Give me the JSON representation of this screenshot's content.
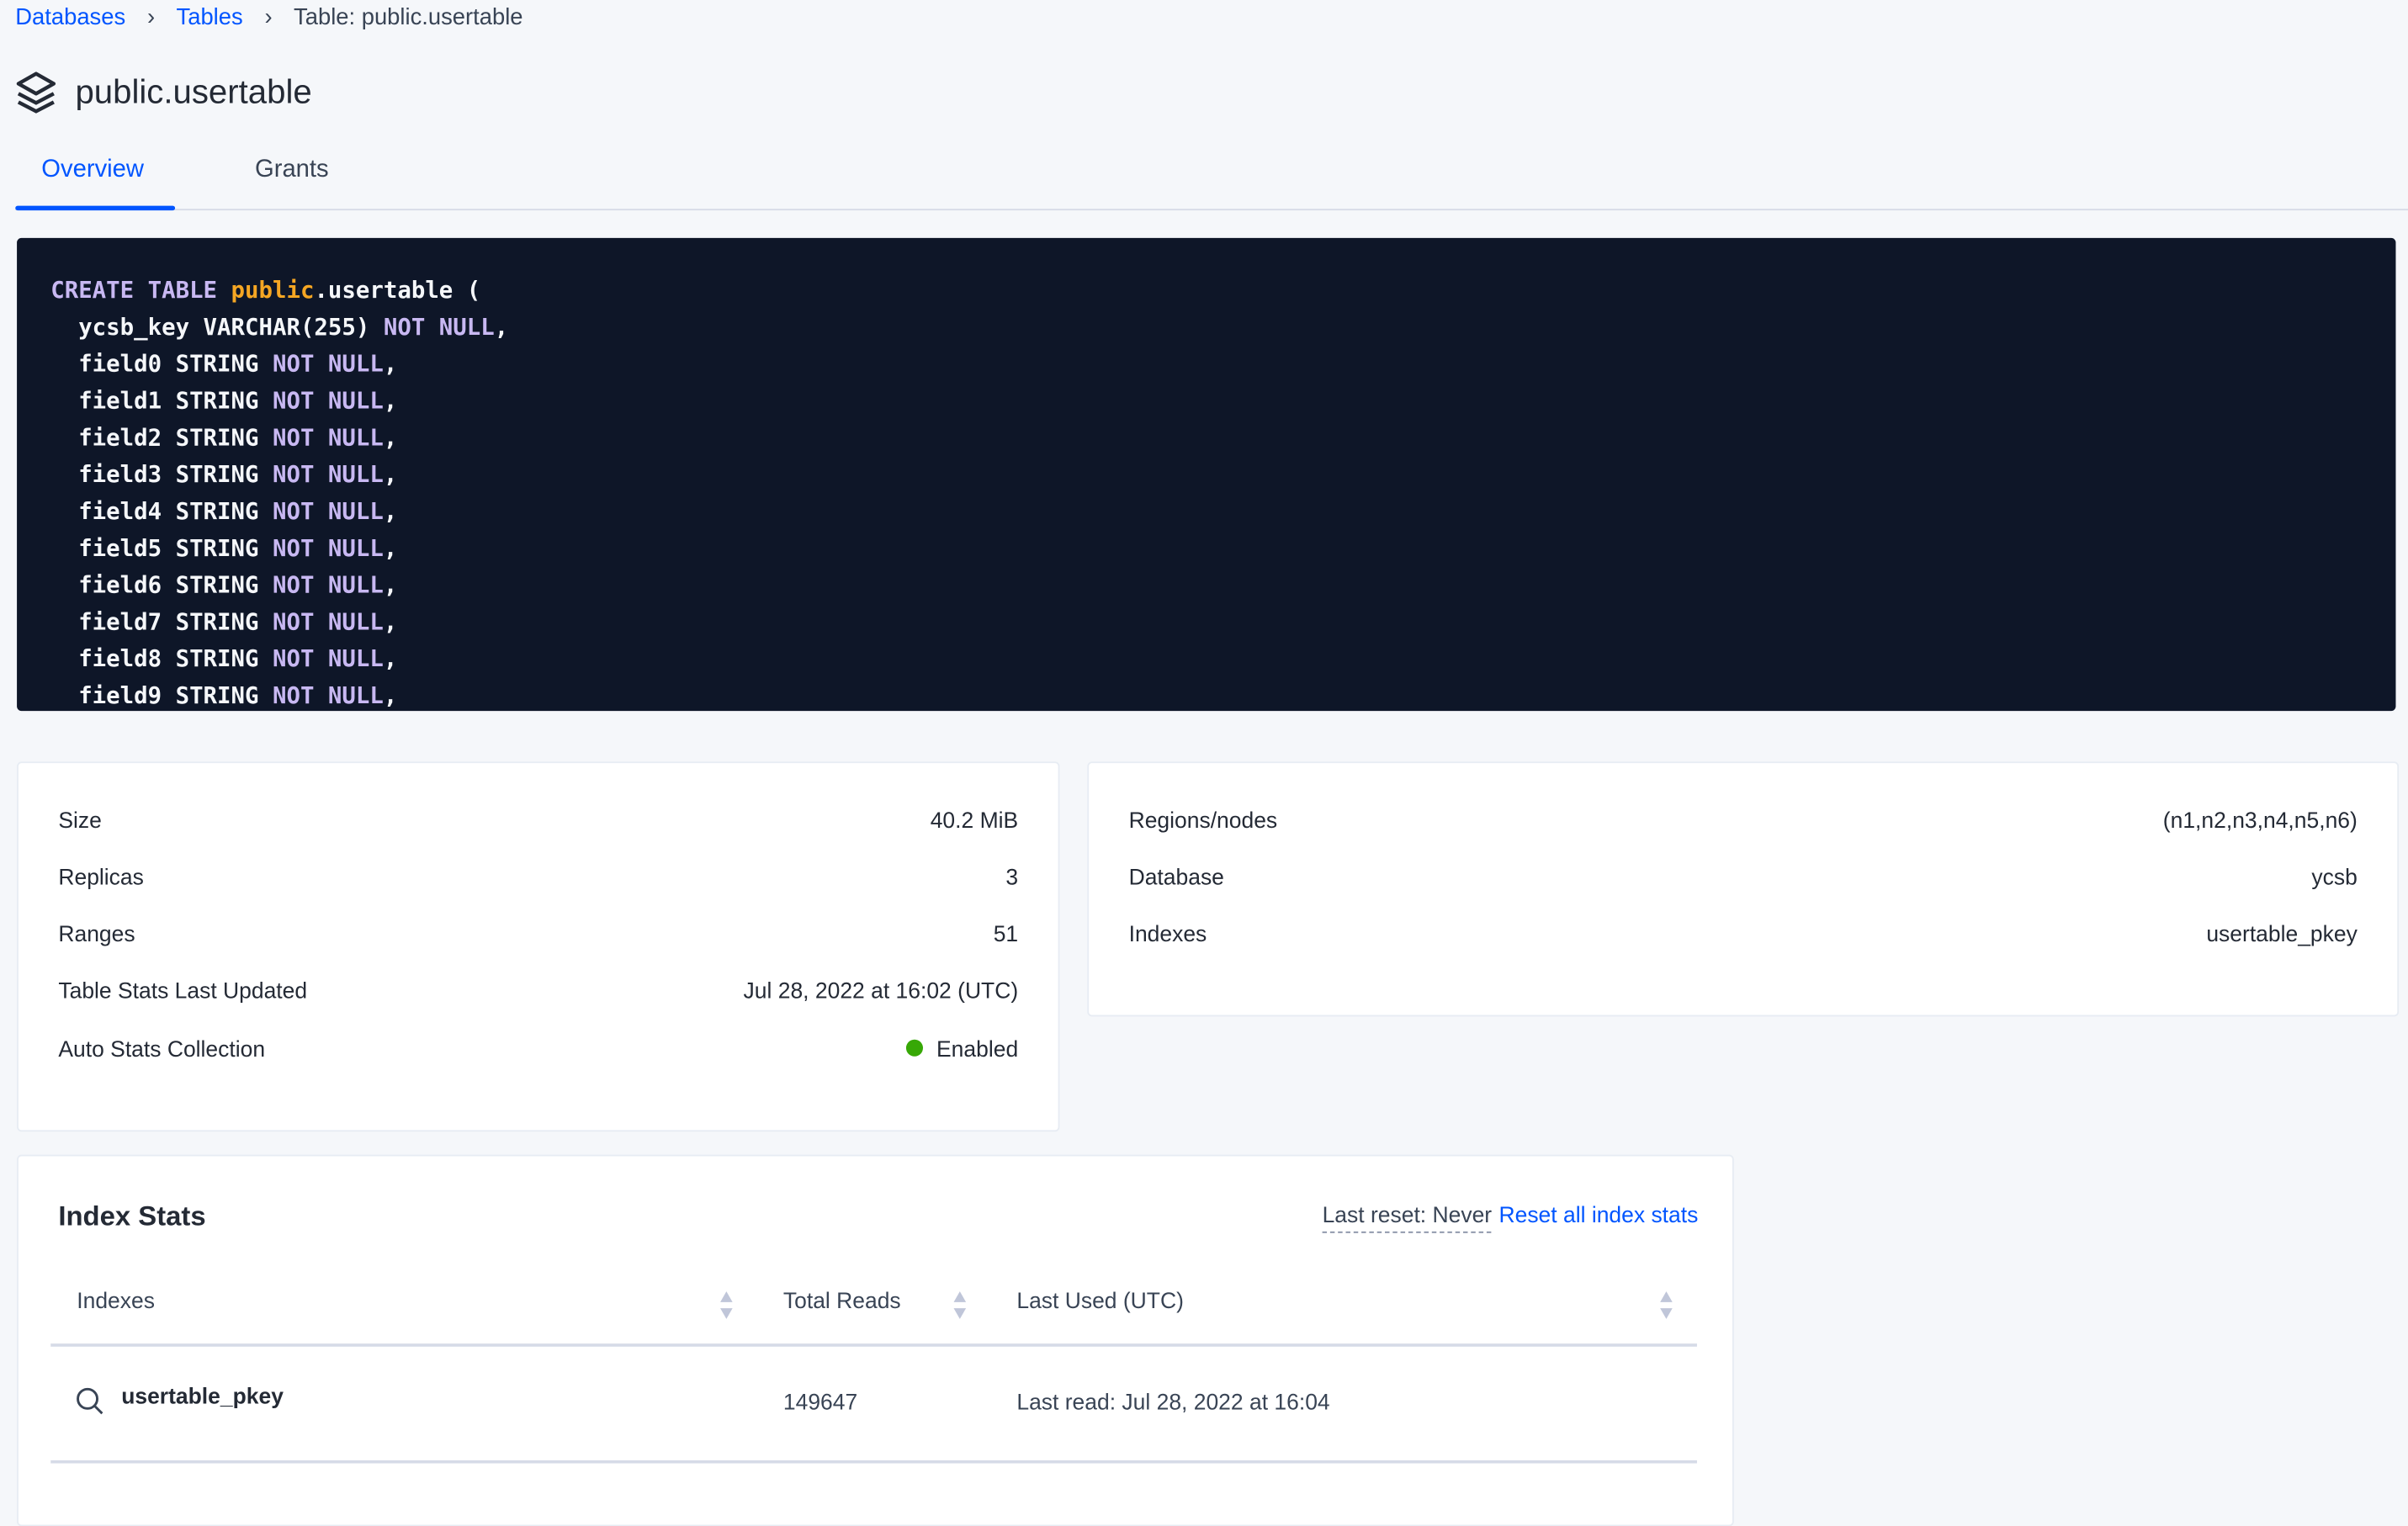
{
  "breadcrumb": {
    "items": [
      {
        "label": "Databases"
      },
      {
        "label": "Tables"
      },
      {
        "label": "Table: public.usertable"
      }
    ]
  },
  "header": {
    "title": "public.usertable",
    "icon": "layers-icon"
  },
  "tabs": [
    {
      "label": "Overview",
      "active": true
    },
    {
      "label": "Grants",
      "active": false
    }
  ],
  "create_statement": {
    "line0": {
      "kw": "CREATE TABLE",
      "schema": "public",
      "rest": ".usertable ("
    },
    "columns": [
      {
        "name": "  ycsb_key VARCHAR(255)"
      },
      {
        "name": "  field0 STRING"
      },
      {
        "name": "  field1 STRING"
      },
      {
        "name": "  field2 STRING"
      },
      {
        "name": "  field3 STRING"
      },
      {
        "name": "  field4 STRING"
      },
      {
        "name": "  field5 STRING"
      },
      {
        "name": "  field6 STRING"
      },
      {
        "name": "  field7 STRING"
      },
      {
        "name": "  field8 STRING"
      },
      {
        "name": "  field9 STRING"
      }
    ],
    "constraint": "NOT NULL",
    "suffix": ","
  },
  "summary_left": [
    {
      "label": "Size",
      "value": "40.2 MiB"
    },
    {
      "label": "Replicas",
      "value": "3"
    },
    {
      "label": "Ranges",
      "value": "51"
    },
    {
      "label": "Table Stats Last Updated",
      "value": "Jul 28, 2022 at 16:02 (UTC)"
    },
    {
      "label": "Auto Stats Collection",
      "value": "Enabled",
      "status_color": "#37a806"
    }
  ],
  "summary_right": [
    {
      "label": "Regions/nodes",
      "value": "(n1,n2,n3,n4,n5,n6)"
    },
    {
      "label": "Database",
      "value": "ycsb"
    },
    {
      "label": "Indexes",
      "value": "usertable_pkey"
    }
  ],
  "index_stats": {
    "title": "Index Stats",
    "last_reset": "Last reset: Never",
    "reset_link": "Reset all index stats",
    "columns": [
      "Indexes",
      "Total Reads",
      "Last Used (UTC)"
    ],
    "rows": [
      {
        "index": "usertable_pkey",
        "total_reads": "149647",
        "last_used": "Last read: Jul 28, 2022 at 16:04"
      }
    ]
  },
  "colors": {
    "accent": "#0055ff",
    "code_bg": "#0e1628",
    "keyword": "#c8b8f2",
    "schema": "#f5a623"
  }
}
